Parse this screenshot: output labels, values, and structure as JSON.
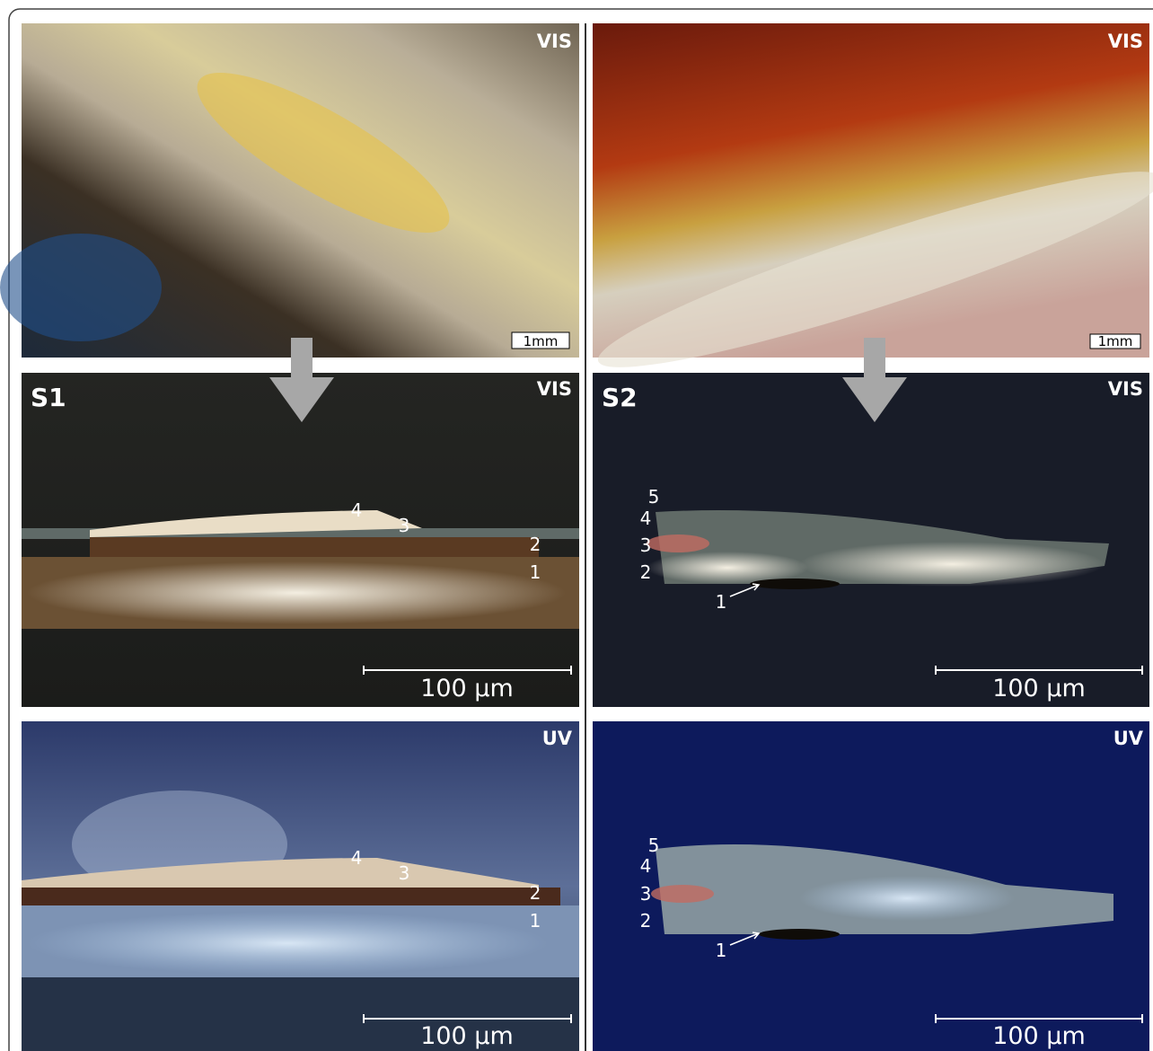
{
  "left": {
    "overview": {
      "mode": "VIS",
      "scale": "1mm"
    },
    "cross_section_vis": {
      "sample": "S1",
      "mode": "VIS",
      "scale": "100 µm",
      "layers": [
        "4",
        "3",
        "2",
        "1"
      ]
    },
    "cross_section_uv": {
      "mode": "UV",
      "scale": "100 µm",
      "layers": [
        "4",
        "3",
        "2",
        "1"
      ]
    }
  },
  "right": {
    "overview": {
      "mode": "VIS",
      "scale": "1mm"
    },
    "cross_section_vis": {
      "sample": "S2",
      "mode": "VIS",
      "scale": "100 µm",
      "layers": [
        "5",
        "4",
        "3",
        "2",
        "1"
      ]
    },
    "cross_section_uv": {
      "mode": "UV",
      "scale": "100 µm",
      "layers": [
        "5",
        "4",
        "3",
        "2",
        "1"
      ]
    }
  }
}
